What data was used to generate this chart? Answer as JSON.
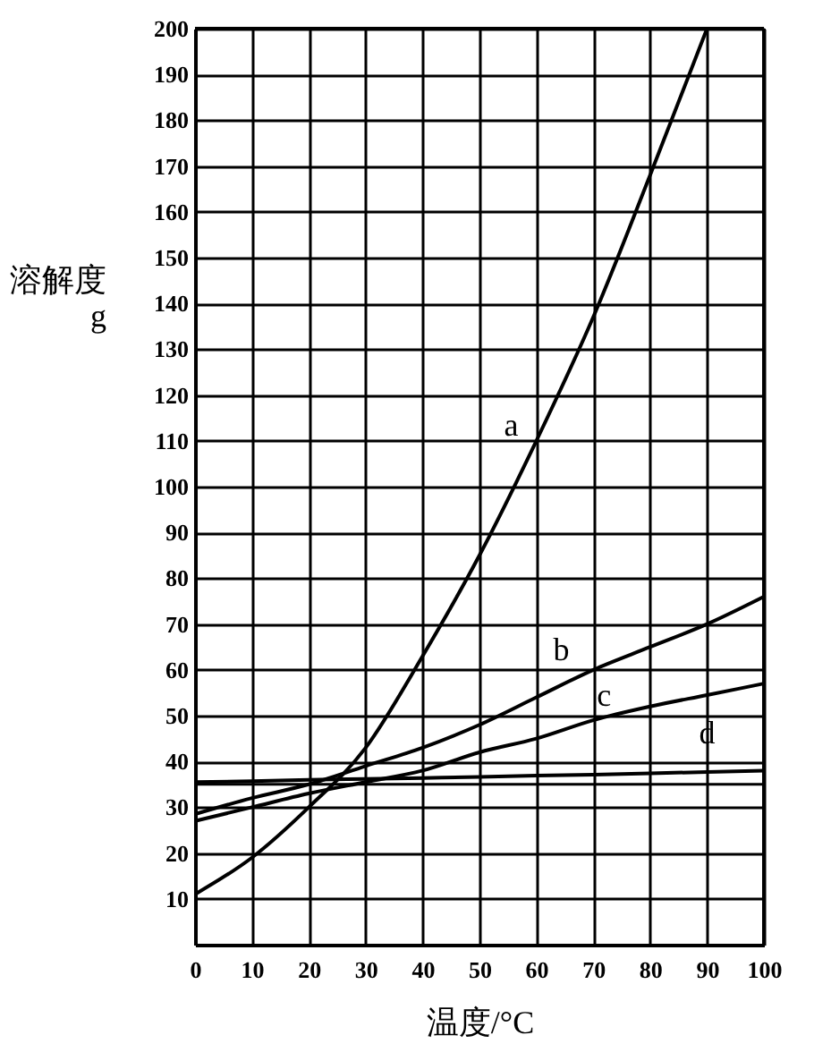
{
  "chart_data": {
    "type": "line",
    "xlabel": "温度/°C",
    "ylabel": "溶解度\ng",
    "x": [
      0,
      10,
      20,
      30,
      40,
      50,
      60,
      70,
      80,
      90,
      100
    ],
    "series": [
      {
        "name": "a",
        "color": "#000000",
        "values": [
          11,
          19,
          30,
          43,
          63,
          85,
          110,
          137,
          168,
          200,
          null
        ]
      },
      {
        "name": "b",
        "color": "#000000",
        "values": [
          28.5,
          32,
          35,
          39,
          43,
          48,
          54,
          60,
          65,
          70,
          76
        ]
      },
      {
        "name": "c",
        "color": "#000000",
        "values": [
          27,
          30,
          33,
          35.5,
          38,
          42,
          45,
          49,
          52,
          54.5,
          57
        ]
      },
      {
        "name": "d",
        "color": "#000000",
        "values": [
          35.5,
          35.7,
          36,
          36.2,
          36.4,
          36.6,
          36.9,
          37.1,
          37.4,
          37.7,
          38
        ]
      }
    ],
    "ref_lines": [
      {
        "axis": "y",
        "value": 35,
        "color": "#000000"
      }
    ],
    "xlim": [
      0,
      100
    ],
    "xticks": [
      0,
      10,
      20,
      30,
      40,
      50,
      60,
      70,
      80,
      90,
      100
    ],
    "ylim": [
      0,
      200
    ],
    "yticks": [
      10,
      20,
      30,
      40,
      50,
      60,
      70,
      80,
      90,
      100,
      110,
      120,
      130,
      140,
      150,
      160,
      170,
      180,
      190,
      200
    ],
    "grid": true,
    "legend": false,
    "marker": "none",
    "line_style": "solid"
  }
}
